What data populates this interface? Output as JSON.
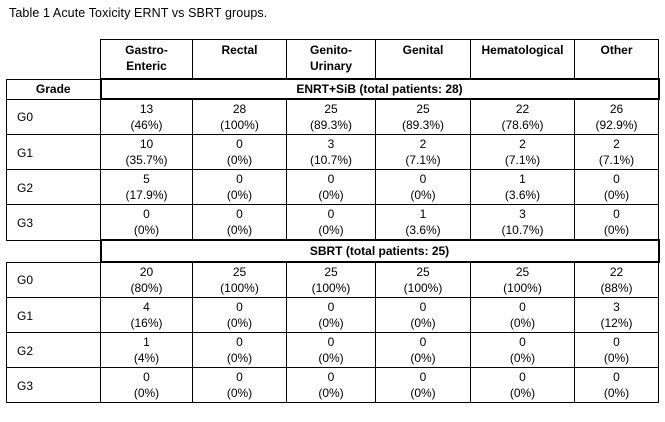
{
  "caption": "Table 1 Acute Toxicity ERNT vs SBRT groups.",
  "columns": [
    {
      "l1": "Gastro-",
      "l2": "Enteric"
    },
    {
      "l1": "Rectal",
      "l2": ""
    },
    {
      "l1": "Genito-",
      "l2": "Urinary"
    },
    {
      "l1": "Genital",
      "l2": ""
    },
    {
      "l1": "Hematological",
      "l2": ""
    },
    {
      "l1": "Other",
      "l2": ""
    }
  ],
  "grade_header": "Grade",
  "groups": [
    {
      "title": "ENRT+SiB (total patients: 28)",
      "rows": [
        {
          "grade": "G0",
          "cells": [
            [
              "13",
              "(46%)"
            ],
            [
              "28",
              "(100%)"
            ],
            [
              "25",
              "(89.3%)"
            ],
            [
              "25",
              "(89.3%)"
            ],
            [
              "22",
              "(78.6%)"
            ],
            [
              "26",
              "(92.9%)"
            ]
          ]
        },
        {
          "grade": "G1",
          "cells": [
            [
              "10",
              "(35.7%)"
            ],
            [
              "0",
              "(0%)"
            ],
            [
              "3",
              "(10.7%)"
            ],
            [
              "2",
              "(7.1%)"
            ],
            [
              "2",
              "(7.1%)"
            ],
            [
              "2",
              "(7.1%)"
            ]
          ]
        },
        {
          "grade": "G2",
          "cells": [
            [
              "5",
              "(17.9%)"
            ],
            [
              "0",
              "(0%)"
            ],
            [
              "0",
              "(0%)"
            ],
            [
              "0",
              "(0%)"
            ],
            [
              "1",
              "(3.6%)"
            ],
            [
              "0",
              "(0%)"
            ]
          ]
        },
        {
          "grade": "G3",
          "cells": [
            [
              "0",
              "(0%)"
            ],
            [
              "0",
              "(0%)"
            ],
            [
              "0",
              "(0%)"
            ],
            [
              "1",
              "(3.6%)"
            ],
            [
              "3",
              "(10.7%)"
            ],
            [
              "0",
              "(0%)"
            ]
          ]
        }
      ]
    },
    {
      "title": "SBRT (total patients: 25)",
      "rows": [
        {
          "grade": "G0",
          "cells": [
            [
              "20",
              "(80%)"
            ],
            [
              "25",
              "(100%)"
            ],
            [
              "25",
              "(100%)"
            ],
            [
              "25",
              "(100%)"
            ],
            [
              "25",
              "(100%)"
            ],
            [
              "22",
              "(88%)"
            ]
          ]
        },
        {
          "grade": "G1",
          "cells": [
            [
              "4",
              "(16%)"
            ],
            [
              "0",
              "(0%)"
            ],
            [
              "0",
              "(0%)"
            ],
            [
              "0",
              "(0%)"
            ],
            [
              "0",
              "(0%)"
            ],
            [
              "3",
              "(12%)"
            ]
          ]
        },
        {
          "grade": "G2",
          "cells": [
            [
              "1",
              "(4%)"
            ],
            [
              "0",
              "(0%)"
            ],
            [
              "0",
              "(0%)"
            ],
            [
              "0",
              "(0%)"
            ],
            [
              "0",
              "(0%)"
            ],
            [
              "0",
              "(0%)"
            ]
          ]
        },
        {
          "grade": "G3",
          "cells": [
            [
              "0",
              "(0%)"
            ],
            [
              "0",
              "(0%)"
            ],
            [
              "0",
              "(0%)"
            ],
            [
              "0",
              "(0%)"
            ],
            [
              "0",
              "(0%)"
            ],
            [
              "0",
              "(0%)"
            ]
          ]
        }
      ]
    }
  ]
}
